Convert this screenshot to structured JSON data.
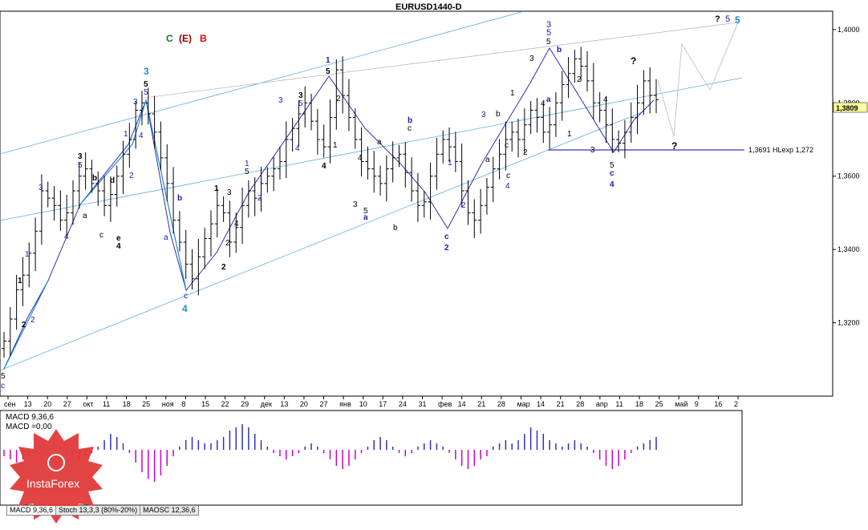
{
  "window": {
    "title": "EURUSD1440-D"
  },
  "scenario_legend": [
    {
      "text": "C",
      "color": "#1a7a1a"
    },
    {
      "text": "(E)",
      "color": "#8b0000"
    },
    {
      "text": "B",
      "color": "#e00000"
    }
  ],
  "price_labels": [
    "1,4000",
    "1,3800",
    "1,3600",
    "1,3400",
    "1,3200"
  ],
  "current_price": "1,3809",
  "hline_label": "1,3691 HLexp 1,272",
  "x_tick_labels": [
    "сен",
    "13",
    "20",
    "27",
    "окт",
    "11",
    "18",
    "25",
    "ноя",
    "8",
    "15",
    "22",
    "29",
    "дек",
    "13",
    "20",
    "27",
    "янв",
    "10",
    "17",
    "24",
    "31",
    "фев",
    "14",
    "21",
    "28",
    "мар",
    "14",
    "21",
    "28",
    "апр",
    "11",
    "18",
    "25",
    "май",
    "9",
    "16",
    "2"
  ],
  "indicator": {
    "name": "MACD 9,36,6",
    "value": "MACD =0,00"
  },
  "tabs": [
    "MACD 9,36,6",
    "Stoch 13,3,3 (80%-20%)",
    "MAOSC 12,36,6"
  ],
  "watermark": "InstaForex",
  "colors": {
    "bull": "#000000",
    "channel": "#3aa0d8",
    "wave_blue": "#1a1aa8",
    "macd_pos": "#3030c0",
    "macd_neg": "#cc00cc",
    "hline": "#0000aa",
    "logo": "#e03a3a"
  },
  "chart_data": {
    "type": "ohlc",
    "title": "EURUSD1440-D",
    "y_range": [
      1.3,
      1.405
    ],
    "close_series": [
      1.315,
      1.321,
      1.329,
      1.333,
      1.339,
      1.345,
      1.356,
      1.354,
      1.352,
      1.348,
      1.35,
      1.356,
      1.36,
      1.362,
      1.358,
      1.356,
      1.352,
      1.355,
      1.36,
      1.366,
      1.37,
      1.378,
      1.38,
      1.377,
      1.372,
      1.365,
      1.358,
      1.348,
      1.342,
      1.336,
      1.332,
      1.338,
      1.343,
      1.347,
      1.352,
      1.35,
      1.342,
      1.346,
      1.352,
      1.356,
      1.354,
      1.358,
      1.36,
      1.362,
      1.364,
      1.37,
      1.373,
      1.377,
      1.38,
      1.375,
      1.37,
      1.368,
      1.376,
      1.389,
      1.382,
      1.376,
      1.37,
      1.364,
      1.362,
      1.36,
      1.358,
      1.362,
      1.365,
      1.366,
      1.361,
      1.356,
      1.352,
      1.353,
      1.36,
      1.366,
      1.37,
      1.368,
      1.364,
      1.356,
      1.35,
      1.348,
      1.352,
      1.357,
      1.362,
      1.366,
      1.37,
      1.372,
      1.37,
      1.374,
      1.378,
      1.376,
      1.372,
      1.374,
      1.38,
      1.385,
      1.388,
      1.392,
      1.39,
      1.386,
      1.38,
      1.378,
      1.374,
      1.37,
      1.369,
      1.372,
      1.376,
      1.38,
      1.386,
      1.382,
      1.3809
    ],
    "current": 1.3809,
    "hline": 1.3691,
    "macd_hist": [
      -0.2,
      -0.3,
      -0.4,
      -0.3,
      -0.2,
      -0.1,
      0,
      0.1,
      0.2,
      0.1,
      -0.1,
      -0.2,
      -0.3,
      -0.2,
      -0.1,
      0.1,
      0.3,
      0.5,
      0.4,
      0.2,
      -0.1,
      -0.4,
      -0.7,
      -0.9,
      -1.0,
      -0.8,
      -0.5,
      -0.2,
      0.1,
      0.3,
      0.4,
      0.3,
      0.2,
      0.2,
      0.3,
      0.4,
      0.6,
      0.7,
      0.8,
      0.7,
      0.5,
      0.3,
      0.1,
      -0.1,
      -0.2,
      -0.3,
      -0.2,
      -0.1,
      0.1,
      0.2,
      0.1,
      -0.1,
      -0.3,
      -0.5,
      -0.6,
      -0.5,
      -0.3,
      -0.1,
      0.1,
      0.3,
      0.4,
      0.3,
      0.1,
      -0.1,
      -0.2,
      -0.1,
      0.1,
      0.2,
      0.3,
      0.2,
      0.1,
      -0.1,
      -0.3,
      -0.5,
      -0.6,
      -0.5,
      -0.3,
      -0.2,
      0.1,
      0.2,
      0.3,
      0.2,
      0.3,
      0.5,
      0.7,
      0.6,
      0.5,
      0.3,
      0.2,
      0.1,
      0.2,
      0.3,
      0.2,
      0.1,
      -0.1,
      -0.3,
      -0.5,
      -0.6,
      -0.5,
      -0.3,
      -0.1,
      0.1,
      0.2,
      0.3,
      0.4
    ]
  }
}
